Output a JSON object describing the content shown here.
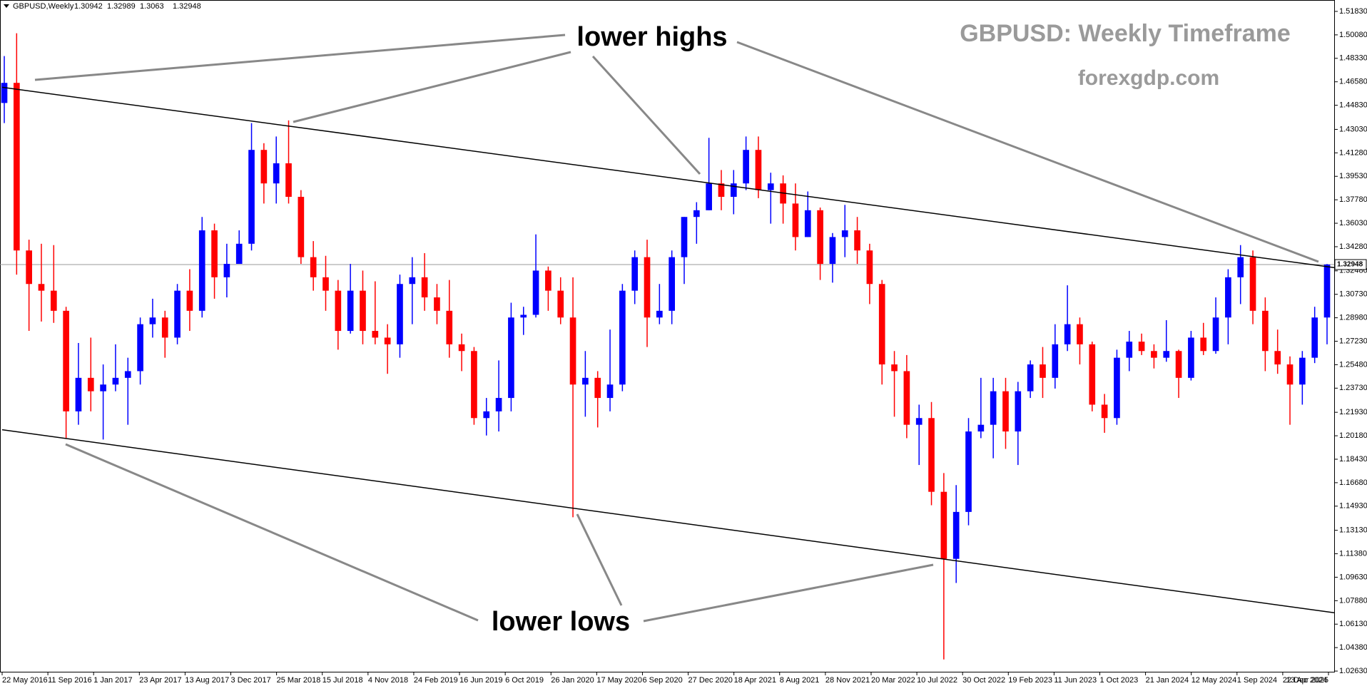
{
  "chart_data": {
    "type": "candlestick",
    "symbol": "GBPUSD,Weekly",
    "header_ohlc": [
      1.30942,
      1.32989,
      1.3063,
      1.32948
    ],
    "title": "GBPUSD: Weekly Timeframe",
    "subtitle": "forexgdp.com",
    "annotations": {
      "highs": "lower highs",
      "lows": "lower lows"
    },
    "bull_color": "#0000ff",
    "bear_color": "#ff0000",
    "current_price": 1.32948,
    "trendlines": [
      {
        "from": 1.4617,
        "to": 1.3272
      },
      {
        "from": 1.2063,
        "to": 1.0698
      }
    ],
    "ylim": [
      1.0258,
      1.5268
    ],
    "yticks": [
      {
        "value": 1.0263,
        "label": "1.02630"
      },
      {
        "value": 1.0438,
        "label": "1.04380"
      },
      {
        "value": 1.0613,
        "label": "1.06130"
      },
      {
        "value": 1.0788,
        "label": "1.07880"
      },
      {
        "value": 1.0963,
        "label": "1.09630"
      },
      {
        "value": 1.1138,
        "label": "1.11380"
      },
      {
        "value": 1.1313,
        "label": "1.13130"
      },
      {
        "value": 1.1493,
        "label": "1.14930"
      },
      {
        "value": 1.1668,
        "label": "1.16680"
      },
      {
        "value": 1.1843,
        "label": "1.18430"
      },
      {
        "value": 1.2018,
        "label": "1.20180"
      },
      {
        "value": 1.2193,
        "label": "1.21930"
      },
      {
        "value": 1.2373,
        "label": "1.23730"
      },
      {
        "value": 1.2548,
        "label": "1.25480"
      },
      {
        "value": 1.2723,
        "label": "1.27230"
      },
      {
        "value": 1.2898,
        "label": "1.28980"
      },
      {
        "value": 1.3073,
        "label": "1.30730"
      },
      {
        "value": 1.3248,
        "label": "1.32480"
      },
      {
        "value": 1.3428,
        "label": "1.34280"
      },
      {
        "value": 1.3603,
        "label": "1.36030"
      },
      {
        "value": 1.3778,
        "label": "1.37780"
      },
      {
        "value": 1.3953,
        "label": "1.39530"
      },
      {
        "value": 1.4128,
        "label": "1.41280"
      },
      {
        "value": 1.4303,
        "label": "1.43030"
      },
      {
        "value": 1.4483,
        "label": "1.44830"
      },
      {
        "value": 1.4658,
        "label": "1.46580"
      },
      {
        "value": 1.4833,
        "label": "1.48330"
      },
      {
        "value": 1.5008,
        "label": "1.50080"
      },
      {
        "value": 1.5183,
        "label": "1.51830"
      }
    ],
    "xtick_labels": [
      "22 May 2016",
      "11 Sep 2016",
      "1 Jan 2017",
      "23 Apr 2017",
      "13 Aug 2017",
      "3 Dec 2017",
      "25 Mar 2018",
      "15 Jul 2018",
      "4 Nov 2018",
      "24 Feb 2019",
      "16 Jun 2019",
      "6 Oct 2019",
      "26 Jan 2020",
      "17 May 2020",
      "6 Sep 2020",
      "27 Dec 2020",
      "18 Apr 2021",
      "8 Aug 2021",
      "28 Nov 2021",
      "20 Mar 2022",
      "10 Jul 2022",
      "30 Oct 2022",
      "19 Feb 2023",
      "11 Jun 2023",
      "1 Oct 2023",
      "21 Jan 2024",
      "12 May 2024",
      "1 Sep 2024",
      "22 Dec 2024",
      "13 Apr 2025"
    ],
    "open": [
      1.45,
      1.465,
      1.34,
      1.315,
      1.31,
      1.295,
      1.22,
      1.245,
      1.235,
      1.24,
      1.245,
      1.25,
      1.285,
      1.29,
      1.275,
      1.31,
      1.295,
      1.355,
      1.32,
      1.33,
      1.345,
      1.415,
      1.39,
      1.405,
      1.38,
      1.335,
      1.32,
      1.31,
      1.28,
      1.31,
      1.28,
      1.275,
      1.27,
      1.315,
      1.32,
      1.305,
      1.295,
      1.27,
      1.265,
      1.215,
      1.22,
      1.23,
      1.29,
      1.292,
      1.325,
      1.31,
      1.29,
      1.24,
      1.245,
      1.23,
      1.24,
      1.31,
      1.335,
      1.29,
      1.295,
      1.335,
      1.365,
      1.37,
      1.39,
      1.38,
      1.39,
      1.415,
      1.385,
      1.39,
      1.375,
      1.35,
      1.37,
      1.33,
      1.35,
      1.355,
      1.34,
      1.315,
      1.255,
      1.25,
      1.21,
      1.215,
      1.16,
      1.11,
      1.145,
      1.205,
      1.21,
      1.235,
      1.205,
      1.235,
      1.255,
      1.245,
      1.27,
      1.285,
      1.27,
      1.225,
      1.215,
      1.26,
      1.272,
      1.265,
      1.26,
      1.265,
      1.245,
      1.275,
      1.265,
      1.29,
      1.32,
      1.335,
      1.295,
      1.265,
      1.255,
      1.24,
      1.26,
      1.29
    ],
    "high": [
      1.485,
      1.502,
      1.348,
      1.345,
      1.344,
      1.298,
      1.271,
      1.275,
      1.255,
      1.27,
      1.26,
      1.29,
      1.304,
      1.295,
      1.315,
      1.326,
      1.365,
      1.36,
      1.345,
      1.355,
      1.435,
      1.42,
      1.425,
      1.437,
      1.385,
      1.347,
      1.336,
      1.318,
      1.33,
      1.325,
      1.317,
      1.285,
      1.322,
      1.335,
      1.338,
      1.315,
      1.318,
      1.278,
      1.268,
      1.23,
      1.258,
      1.301,
      1.298,
      1.352,
      1.328,
      1.32,
      1.32,
      1.265,
      1.25,
      1.281,
      1.315,
      1.34,
      1.348,
      1.315,
      1.34,
      1.365,
      1.376,
      1.424,
      1.4,
      1.4,
      1.425,
      1.425,
      1.398,
      1.396,
      1.39,
      1.384,
      1.372,
      1.353,
      1.374,
      1.365,
      1.345,
      1.318,
      1.265,
      1.262,
      1.225,
      1.227,
      1.174,
      1.165,
      1.215,
      1.245,
      1.245,
      1.245,
      1.242,
      1.258,
      1.268,
      1.285,
      1.314,
      1.29,
      1.272,
      1.233,
      1.266,
      1.28,
      1.278,
      1.27,
      1.288,
      1.266,
      1.28,
      1.286,
      1.305,
      1.326,
      1.344,
      1.34,
      1.305,
      1.281,
      1.261,
      1.265,
      1.298,
      1.32989
    ],
    "low": [
      1.435,
      1.322,
      1.28,
      1.287,
      1.286,
      1.2,
      1.21,
      1.22,
      1.199,
      1.235,
      1.21,
      1.24,
      1.275,
      1.26,
      1.27,
      1.28,
      1.29,
      1.304,
      1.305,
      1.33,
      1.34,
      1.375,
      1.375,
      1.375,
      1.33,
      1.31,
      1.295,
      1.266,
      1.278,
      1.27,
      1.27,
      1.248,
      1.26,
      1.285,
      1.295,
      1.285,
      1.26,
      1.25,
      1.21,
      1.202,
      1.205,
      1.22,
      1.277,
      1.29,
      1.295,
      1.285,
      1.141,
      1.216,
      1.208,
      1.22,
      1.235,
      1.3,
      1.268,
      1.285,
      1.285,
      1.315,
      1.345,
      1.37,
      1.37,
      1.367,
      1.385,
      1.379,
      1.36,
      1.36,
      1.34,
      1.35,
      1.318,
      1.316,
      1.335,
      1.33,
      1.3,
      1.24,
      1.216,
      1.2,
      1.18,
      1.15,
      1.035,
      1.092,
      1.135,
      1.2,
      1.185,
      1.192,
      1.18,
      1.23,
      1.23,
      1.237,
      1.265,
      1.255,
      1.22,
      1.204,
      1.21,
      1.25,
      1.262,
      1.252,
      1.257,
      1.23,
      1.243,
      1.262,
      1.263,
      1.27,
      1.3,
      1.285,
      1.25,
      1.248,
      1.21,
      1.225,
      1.256,
      1.27
    ],
    "close": [
      1.465,
      1.34,
      1.315,
      1.31,
      1.295,
      1.22,
      1.245,
      1.235,
      1.24,
      1.245,
      1.25,
      1.285,
      1.29,
      1.275,
      1.31,
      1.295,
      1.355,
      1.32,
      1.33,
      1.345,
      1.415,
      1.39,
      1.405,
      1.38,
      1.335,
      1.32,
      1.31,
      1.28,
      1.31,
      1.28,
      1.275,
      1.27,
      1.315,
      1.32,
      1.305,
      1.295,
      1.27,
      1.265,
      1.215,
      1.22,
      1.23,
      1.29,
      1.292,
      1.325,
      1.31,
      1.29,
      1.24,
      1.245,
      1.23,
      1.24,
      1.31,
      1.335,
      1.29,
      1.295,
      1.335,
      1.365,
      1.37,
      1.39,
      1.38,
      1.39,
      1.415,
      1.385,
      1.39,
      1.375,
      1.35,
      1.37,
      1.33,
      1.35,
      1.355,
      1.34,
      1.315,
      1.255,
      1.25,
      1.21,
      1.215,
      1.16,
      1.11,
      1.145,
      1.205,
      1.21,
      1.235,
      1.205,
      1.235,
      1.255,
      1.245,
      1.27,
      1.285,
      1.27,
      1.225,
      1.215,
      1.26,
      1.272,
      1.265,
      1.26,
      1.265,
      1.245,
      1.275,
      1.265,
      1.29,
      1.32,
      1.335,
      1.295,
      1.265,
      1.255,
      1.24,
      1.26,
      1.29,
      1.32948
    ]
  }
}
